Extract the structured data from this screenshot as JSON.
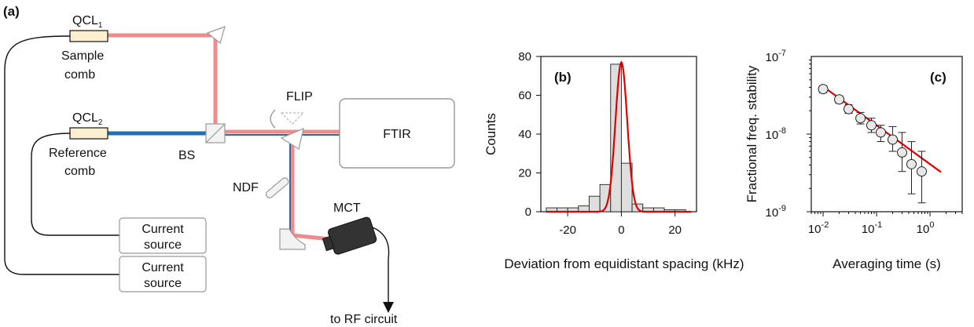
{
  "panel_labels": {
    "a": "(a)",
    "b": "(b)",
    "c": "(c)"
  },
  "setup": {
    "qcl1": {
      "name": "QCL",
      "sub": "1",
      "caption_lines": [
        "Sample",
        "comb"
      ]
    },
    "qcl2": {
      "name": "QCL",
      "sub": "2",
      "caption_lines": [
        "Reference",
        "comb"
      ]
    },
    "bs": "BS",
    "flip": "FLIP",
    "ftir": "FTIR",
    "ndf": "NDF",
    "mct": "MCT",
    "current_source_1": [
      "Current",
      "source"
    ],
    "current_source_2": [
      "Current",
      "source"
    ],
    "rf": "to RF circuit",
    "colors": {
      "sample_beam": "#f08080",
      "reference_beam": "#1f6fb4",
      "fit_line": "#e00000"
    }
  },
  "chart_data": [
    {
      "type": "bar",
      "panel": "(b)",
      "xlabel": "Deviation from equidistant spacing (kHz)",
      "ylabel": "Counts",
      "xlim": [
        -30,
        28
      ],
      "ylim": [
        0,
        80
      ],
      "xticks": [
        -20,
        0,
        20
      ],
      "yticks": [
        0,
        20,
        40,
        60,
        80
      ],
      "bin_edges": [
        -28,
        -24,
        -20,
        -16,
        -12,
        -8,
        -4,
        0,
        4,
        8,
        12,
        16,
        20,
        24
      ],
      "values": [
        2,
        2,
        2,
        3,
        8,
        14,
        76,
        25,
        4,
        2,
        2,
        1,
        1
      ],
      "fit": {
        "type": "gaussian",
        "amplitude": 77,
        "center": 0,
        "sigma": 2.2
      }
    },
    {
      "type": "scatter",
      "panel": "(c)",
      "xlabel": "Averaging time (s)",
      "ylabel": "Fractional freq. stability",
      "xscale": "log",
      "yscale": "log",
      "xlim": [
        0.006,
        4
      ],
      "ylim": [
        1e-09,
        1e-07
      ],
      "xticks": [
        {
          "base": "10",
          "exp": "-2"
        },
        {
          "base": "10",
          "exp": "-1"
        },
        {
          "base": "10",
          "exp": "0"
        }
      ],
      "yticks": [
        {
          "base": "10",
          "exp": "-9"
        },
        {
          "base": "10",
          "exp": "-8"
        },
        {
          "base": "10",
          "exp": "-7"
        }
      ],
      "x": [
        0.01,
        0.02,
        0.03,
        0.05,
        0.08,
        0.12,
        0.2,
        0.3,
        0.45,
        0.7
      ],
      "y": [
        3.8e-08,
        2.8e-08,
        2.1e-08,
        1.6e-08,
        1.3e-08,
        1.05e-08,
        8.5e-09,
        5.8e-09,
        4.1e-09,
        3.3e-09
      ],
      "err_low": [
        3.4e-08,
        2.5e-08,
        1.85e-08,
        1.35e-08,
        1.05e-08,
        8e-09,
        6e-09,
        3.3e-09,
        1.7e-09,
        1.3e-09
      ],
      "err_high": [
        4.2e-08,
        3.1e-08,
        2.4e-08,
        1.9e-08,
        1.6e-08,
        1.3e-08,
        1.25e-08,
        1.05e-08,
        8e-09,
        6e-09
      ],
      "fit": {
        "type": "power",
        "x0": 0.01,
        "y0": 4.1e-08,
        "slope": -0.5,
        "xrange": [
          0.01,
          1.6
        ]
      }
    }
  ]
}
